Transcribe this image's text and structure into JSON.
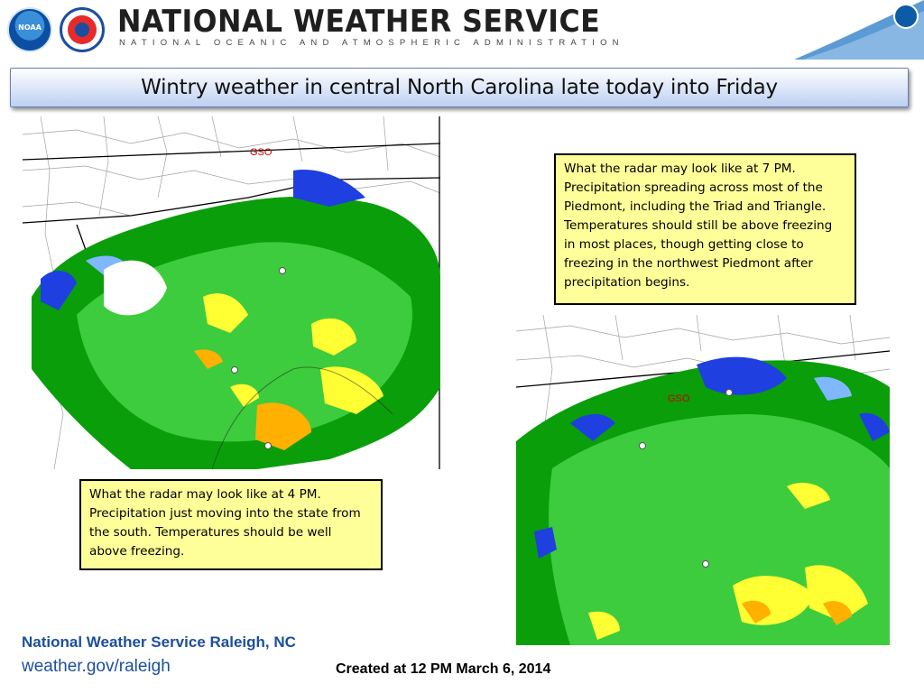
{
  "header": {
    "logos": [
      {
        "name": "noaa-logo",
        "text": "NOAA"
      },
      {
        "name": "nws-logo"
      },
      {
        "name": "doc-logo"
      }
    ],
    "org_title": "NATIONAL WEATHER SERVICE",
    "org_subtitle": "NATIONAL OCEANIC AND ATMOSPHERIC ADMINISTRATION",
    "colors": {
      "title_bar_top": "#ffffff",
      "title_bar_bottom": "#bcd0f2",
      "swoosh": "#5b9bd5",
      "footer_text": "#1c4f9c"
    }
  },
  "slide": {
    "title": "Wintry weather in central North Carolina late today into Friday"
  },
  "radar_maps": [
    {
      "name": "radar-4pm",
      "marker_label": "GSO",
      "precip_colors": [
        "#0a9e0a",
        "#3dcc3d",
        "#ffff33",
        "#ffb000",
        "#1f3fe0",
        "#7fb8ff"
      ]
    },
    {
      "name": "radar-7pm",
      "marker_label": "GSO",
      "precip_colors": [
        "#0a9e0a",
        "#3dcc3d",
        "#ffff33",
        "#ffb000",
        "#1f3fe0",
        "#7fb8ff"
      ]
    }
  ],
  "callouts": {
    "seven_pm": "What the radar may look like at 7 PM.  Precipitation spreading across most of the Piedmont, including the Triad and Triangle.  Temperatures should still be above freezing in most places, though getting close to freezing in the northwest Piedmont after precipitation begins.",
    "four_pm": "What the radar may look like at 4 PM.  Precipitation just moving into the state from the south.  Temperatures should be well above freezing."
  },
  "footer": {
    "office": "National Weather Service Raleigh, NC",
    "url": "weather.gov/raleigh",
    "created": "Created at 12 PM March 6, 2014"
  }
}
